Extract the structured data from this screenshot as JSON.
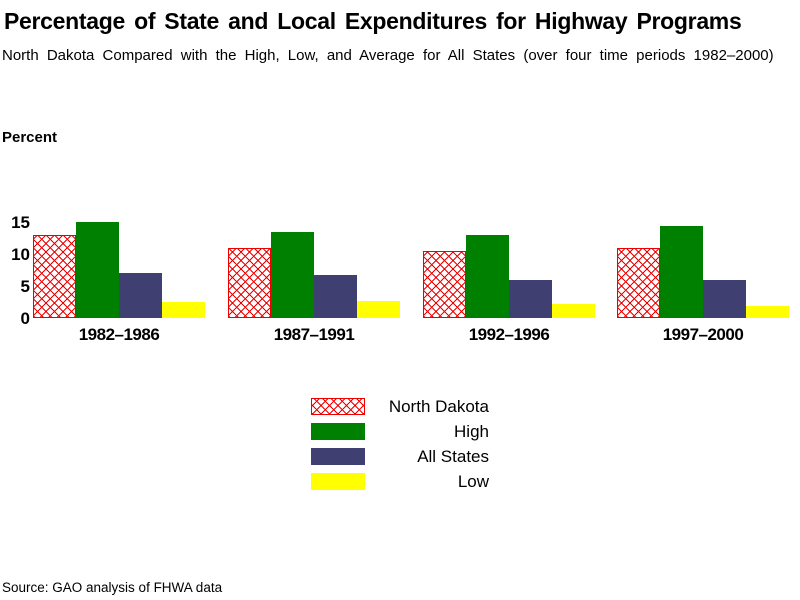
{
  "chart_data": {
    "type": "bar",
    "title": "Percentage of State and Local Expenditures for Highway Programs",
    "subtitle": "North Dakota Compared with the High, Low, and Average for All States (over four time periods 1982–2000)",
    "ylabel": "Percent",
    "source": "Source: GAO analysis of FHWA data",
    "categories": [
      "1982–1986",
      "1987–1991",
      "1992–1996",
      "1997–2000"
    ],
    "series": [
      {
        "name": "North Dakota",
        "pattern": "crosshatch",
        "color": "#EE0000",
        "values": [
          13,
          11,
          10.5,
          11
        ]
      },
      {
        "name": "High",
        "pattern": "solid",
        "color": "#008000",
        "values": [
          15,
          13.5,
          13,
          14.3
        ]
      },
      {
        "name": "All States",
        "pattern": "solid",
        "color": "#3F3F72",
        "values": [
          7,
          6.7,
          6,
          6
        ]
      },
      {
        "name": "Low",
        "pattern": "solid",
        "color": "#FFFF00",
        "values": [
          2.5,
          2.7,
          2.2,
          1.8
        ]
      }
    ],
    "yticks": [
      0,
      5,
      10,
      15
    ],
    "ylim": [
      0,
      15
    ],
    "grid": false,
    "legend_position": "bottom-center",
    "legend_labels": [
      "North Dakota",
      "High",
      "All States",
      "Low"
    ]
  }
}
